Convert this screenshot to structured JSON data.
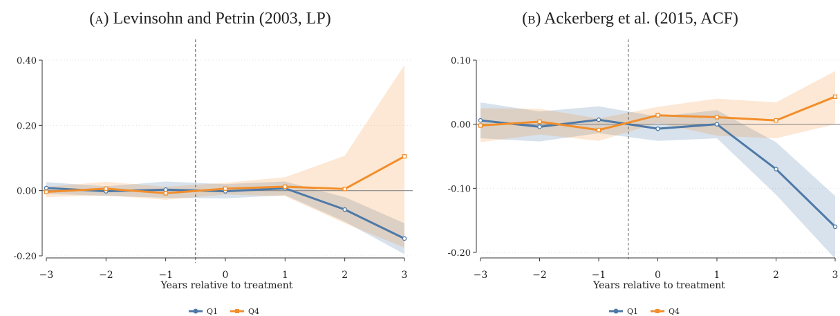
{
  "chart_data": [
    {
      "type": "line",
      "panel_label": "(a)",
      "title": "Levinsohn and Petrin (2003, LP)",
      "xlabel": "Years relative to treatment",
      "ylabel": "",
      "x": [
        -3,
        -2,
        -1,
        0,
        1,
        2,
        3
      ],
      "xticks": [
        "−3",
        "−2",
        "−1",
        "0",
        "1",
        "2",
        "3"
      ],
      "ylim": [
        -0.2,
        0.4
      ],
      "yticks": [
        -0.2,
        0,
        0.2,
        0.4
      ],
      "yticklabels": [
        "-0.20",
        "0.00",
        "0.20",
        "0.40"
      ],
      "treatment_line_x": -0.5,
      "reference_line_y": 0,
      "grid": "horizontal-dotted",
      "legend_position": "bottom-center",
      "series": [
        {
          "name": "Q1",
          "color": "#4e79a7",
          "marker": "circle",
          "values": [
            0.008,
            -0.002,
            0.003,
            -0.002,
            0.007,
            -0.058,
            -0.147
          ],
          "ci_lower": [
            -0.01,
            -0.016,
            -0.022,
            -0.024,
            -0.014,
            -0.095,
            -0.195
          ],
          "ci_upper": [
            0.026,
            0.013,
            0.028,
            0.02,
            0.028,
            -0.02,
            -0.1
          ]
        },
        {
          "name": "Q4",
          "color": "#f28e2b",
          "marker": "square",
          "values": [
            -0.004,
            0.006,
            -0.008,
            0.006,
            0.012,
            0.005,
            0.105
          ],
          "ci_lower": [
            -0.02,
            -0.015,
            -0.028,
            -0.012,
            -0.017,
            -0.1,
            -0.175
          ],
          "ci_upper": [
            0.012,
            0.027,
            0.012,
            0.024,
            0.041,
            0.107,
            0.385
          ]
        }
      ]
    },
    {
      "type": "line",
      "panel_label": "(b)",
      "title": "Ackerberg et al. (2015, ACF)",
      "xlabel": "Years relative to treatment",
      "ylabel": "",
      "x": [
        -3,
        -2,
        -1,
        0,
        1,
        2,
        3
      ],
      "xticks": [
        "−3",
        "−2",
        "−1",
        "0",
        "1",
        "2",
        "3"
      ],
      "ylim": [
        -0.2,
        0.1
      ],
      "yticks": [
        -0.2,
        -0.1,
        0,
        0.1
      ],
      "yticklabels": [
        "-0.20",
        "-0.10",
        "0.00",
        "0.10"
      ],
      "treatment_line_x": -0.5,
      "reference_line_y": 0,
      "grid": "horizontal-dotted",
      "legend_position": "bottom-center",
      "series": [
        {
          "name": "Q1",
          "color": "#4e79a7",
          "marker": "circle",
          "values": [
            0.006,
            -0.004,
            0.007,
            -0.007,
            0.0,
            -0.07,
            -0.16
          ],
          "ci_lower": [
            -0.022,
            -0.027,
            -0.014,
            -0.026,
            -0.022,
            -0.11,
            -0.21
          ],
          "ci_upper": [
            0.034,
            0.02,
            0.028,
            0.012,
            0.022,
            -0.028,
            -0.112
          ]
        },
        {
          "name": "Q4",
          "color": "#f28e2b",
          "marker": "square",
          "values": [
            -0.002,
            0.004,
            -0.009,
            0.014,
            0.011,
            0.006,
            0.043
          ],
          "ci_lower": [
            -0.028,
            -0.016,
            -0.026,
            0.002,
            -0.018,
            -0.022,
            0.0
          ],
          "ci_upper": [
            0.025,
            0.024,
            0.009,
            0.027,
            0.04,
            0.034,
            0.083
          ]
        }
      ]
    }
  ]
}
